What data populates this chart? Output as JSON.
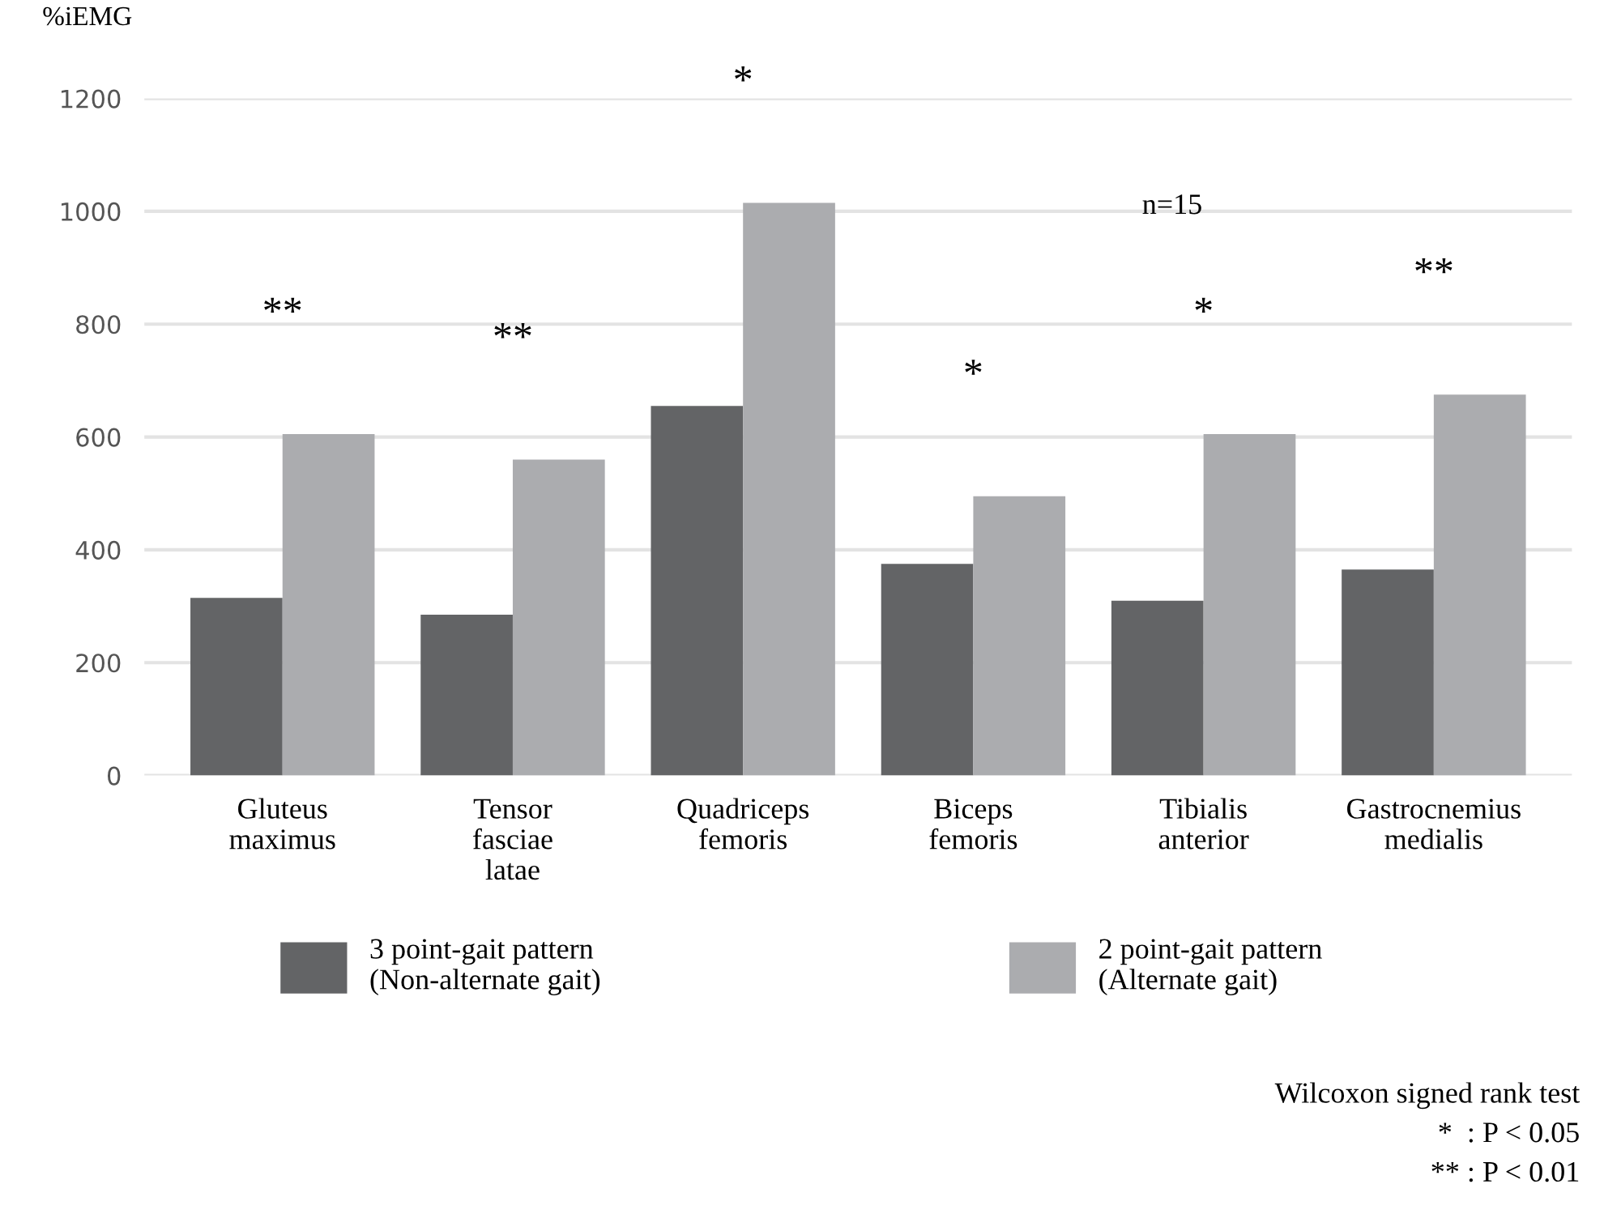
{
  "chart_data": {
    "type": "bar",
    "ylabel": "%iEMG",
    "categories": [
      "Gluteus\nmaximus",
      "Tensor\nfasciae\nlatae",
      "Quadriceps\nfemoris",
      "Biceps\nfemoris",
      "Tibialis\nanterior",
      "Gastrocnemius\nmedialis"
    ],
    "series": [
      {
        "name": "3 point-gait pattern\n(Non-alternate gait)",
        "color": "#636466",
        "values": [
          315,
          285,
          655,
          375,
          310,
          365
        ]
      },
      {
        "name": "2 point-gait pattern\n(Alternate gait)",
        "color": "#abacaf",
        "values": [
          605,
          560,
          1015,
          495,
          605,
          675
        ]
      }
    ],
    "ylim": [
      0,
      1200
    ],
    "yticks": [
      0,
      200,
      400,
      600,
      800,
      1000,
      1200
    ],
    "grid": "y",
    "legend": "bottom",
    "annotations": [
      "**",
      "**",
      "*",
      "*",
      "*",
      "**",
      "n=15",
      "Wilcoxon signed rank test",
      "*  : P < 0.05",
      "** : P < 0.01"
    ]
  }
}
